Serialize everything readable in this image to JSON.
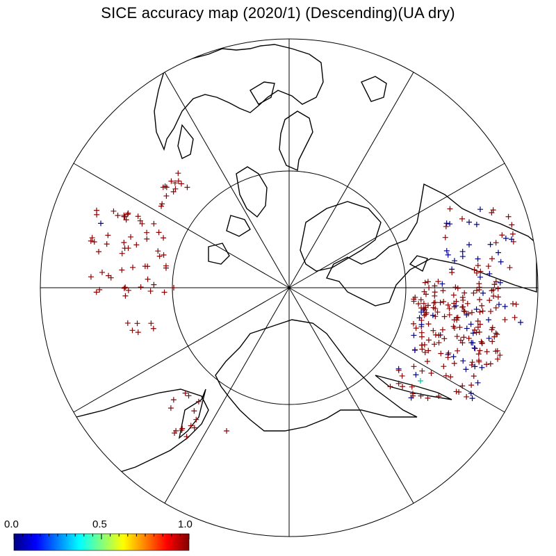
{
  "title": "SICE accuracy map (2020/1) (Descending)(UA dry)",
  "colorbar": {
    "labels": [
      "0.0",
      "0.5",
      "1.0"
    ],
    "stops": [
      "#000080",
      "#0000ff",
      "#0080ff",
      "#00ffff",
      "#80ff80",
      "#ffff00",
      "#ff8000",
      "#ff0000",
      "#800000"
    ]
  },
  "colors": {
    "high": "#8b0000",
    "low": "#00008b",
    "mid": "#00c0a0",
    "grid": "#000000"
  }
}
